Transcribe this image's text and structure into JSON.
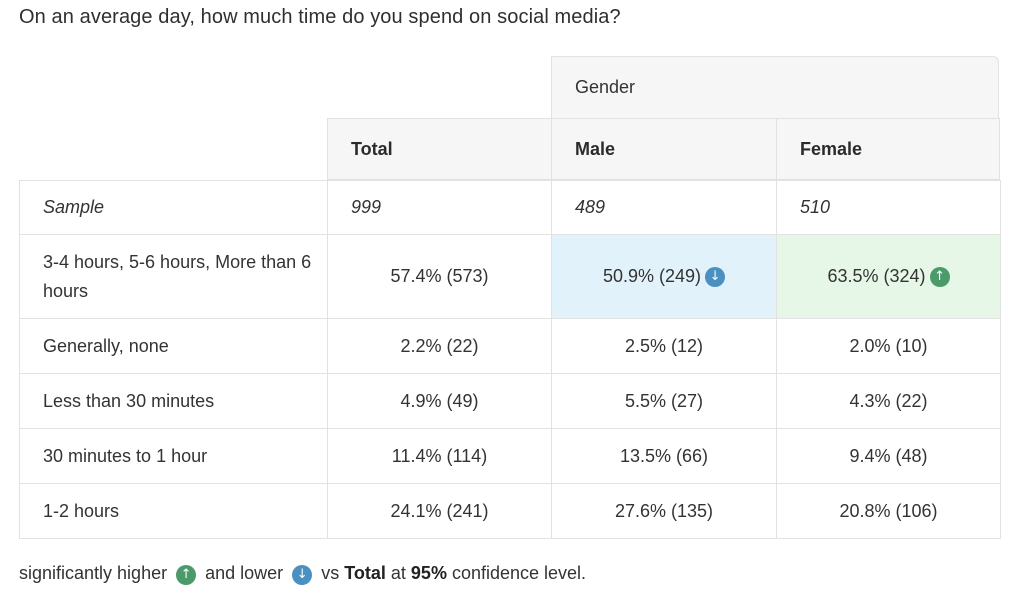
{
  "question": "On an average day, how much time do you spend on social media?",
  "group_header": "Gender",
  "columns": [
    "Total",
    "Male",
    "Female"
  ],
  "sample": {
    "label": "Sample",
    "values": [
      "999",
      "489",
      "510"
    ]
  },
  "rows": [
    {
      "label": "3-4 hours, 5-6 hours, More than 6 hours",
      "values": [
        "57.4% (573)",
        "50.9% (249)",
        "63.5% (324)"
      ]
    },
    {
      "label": "Generally, none",
      "values": [
        "2.2% (22)",
        "2.5% (12)",
        "2.0% (10)"
      ]
    },
    {
      "label": "Less than 30 minutes",
      "values": [
        "4.9% (49)",
        "5.5% (27)",
        "4.3% (22)"
      ]
    },
    {
      "label": "30 minutes to 1 hour",
      "values": [
        "11.4% (114)",
        "13.5% (66)",
        "9.4% (48)"
      ]
    },
    {
      "label": "1-2 hours",
      "values": [
        "24.1% (241)",
        "27.6% (135)",
        "20.8% (106)"
      ]
    }
  ],
  "significance": {
    "up_icon": "arrow-up-icon",
    "down_icon": "arrow-down-icon",
    "up_color": "#4b9a6a",
    "down_color": "#4a90c0",
    "highlight_lower_color": "#e2f2fa",
    "highlight_higher_color": "#e6f7e8"
  },
  "footnote": {
    "text1": "significantly higher",
    "text2": "and lower",
    "text3": "vs",
    "bold1": "Total",
    "text4": "at",
    "bold2": "95%",
    "text5": "confidence level."
  }
}
